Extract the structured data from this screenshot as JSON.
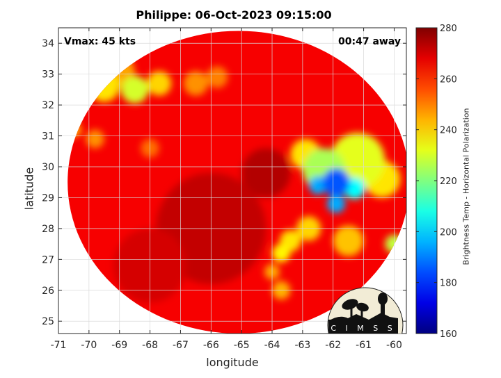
{
  "chart_data": {
    "type": "heatmap",
    "title": "Philippe: 06-Oct-2023 09:15:00",
    "xlabel": "longitude",
    "ylabel": "latitude",
    "xlim": [
      -71,
      -59.6
    ],
    "ylim": [
      24.6,
      34.5
    ],
    "xticks": [
      -71,
      -70,
      -69,
      -68,
      -67,
      -66,
      -65,
      -64,
      -63,
      -62,
      -61,
      -60
    ],
    "yticks": [
      25,
      26,
      27,
      28,
      29,
      30,
      31,
      32,
      33,
      34
    ],
    "grid": true,
    "annotations": {
      "top_left": "Vmax: 45 kts",
      "top_right": "00:47 away"
    },
    "colorbar": {
      "label": "Brightness Temp - Horizontal Polarization",
      "min": 160,
      "max": 280,
      "ticks": [
        160,
        180,
        200,
        220,
        240,
        260,
        280
      ],
      "colormap": "jet"
    },
    "swath": {
      "center": [
        -65.1,
        29.5
      ],
      "radius_lon": 5.6,
      "radius_lat": 4.9,
      "background_value": 266
    },
    "features": [
      {
        "name": "storm core",
        "lon": -61.9,
        "lat": 29.5,
        "value": 185,
        "radius": 0.45
      },
      {
        "name": "storm core",
        "lon": -62.5,
        "lat": 29.4,
        "value": 195,
        "radius": 0.3
      },
      {
        "name": "storm core",
        "lon": -61.9,
        "lat": 28.8,
        "value": 195,
        "radius": 0.3
      },
      {
        "name": "storm core",
        "lon": -61.3,
        "lat": 29.3,
        "value": 205,
        "radius": 0.35
      },
      {
        "name": "convection",
        "lon": -62.3,
        "lat": 29.9,
        "value": 225,
        "radius": 0.7
      },
      {
        "name": "convection",
        "lon": -61.2,
        "lat": 30.2,
        "value": 232,
        "radius": 0.9
      },
      {
        "name": "convection",
        "lon": -60.4,
        "lat": 29.6,
        "value": 238,
        "radius": 0.6
      },
      {
        "name": "convection",
        "lon": -62.9,
        "lat": 30.4,
        "value": 238,
        "radius": 0.5
      },
      {
        "name": "outer band",
        "lon": -60.0,
        "lat": 27.5,
        "value": 228,
        "radius": 0.3
      },
      {
        "name": "outer band",
        "lon": -62.8,
        "lat": 28.0,
        "value": 240,
        "radius": 0.4
      },
      {
        "name": "outer band",
        "lon": -63.4,
        "lat": 27.6,
        "value": 238,
        "radius": 0.35
      },
      {
        "name": "outer band",
        "lon": -63.7,
        "lat": 27.2,
        "value": 236,
        "radius": 0.3
      },
      {
        "name": "outer band",
        "lon": -64.0,
        "lat": 26.6,
        "value": 245,
        "radius": 0.25
      },
      {
        "name": "outer band",
        "lon": -63.7,
        "lat": 26.0,
        "value": 244,
        "radius": 0.3
      },
      {
        "name": "outer band",
        "lon": -61.5,
        "lat": 27.6,
        "value": 242,
        "radius": 0.5
      },
      {
        "name": "northern band",
        "lon": -69.5,
        "lat": 32.6,
        "value": 238,
        "radius": 0.5
      },
      {
        "name": "northern band",
        "lon": -68.5,
        "lat": 32.5,
        "value": 230,
        "radius": 0.45
      },
      {
        "name": "northern band",
        "lon": -67.7,
        "lat": 32.7,
        "value": 240,
        "radius": 0.4
      },
      {
        "name": "northern band",
        "lon": -69.0,
        "lat": 33.1,
        "value": 246,
        "radius": 0.5
      },
      {
        "name": "northern band",
        "lon": -66.5,
        "lat": 32.7,
        "value": 248,
        "radius": 0.4
      },
      {
        "name": "northern band",
        "lon": -65.8,
        "lat": 32.9,
        "value": 250,
        "radius": 0.35
      },
      {
        "name": "northern band",
        "lon": -70.5,
        "lat": 31.2,
        "value": 244,
        "radius": 0.25
      },
      {
        "name": "northern band",
        "lon": -69.8,
        "lat": 30.9,
        "value": 248,
        "radius": 0.3
      },
      {
        "name": "northern band",
        "lon": -68.0,
        "lat": 30.6,
        "value": 252,
        "radius": 0.3
      },
      {
        "name": "clear air",
        "lon": -66.0,
        "lat": 28.0,
        "value": 272,
        "radius": 1.8
      },
      {
        "name": "clear air",
        "lon": -64.2,
        "lat": 29.8,
        "value": 274,
        "radius": 0.8
      },
      {
        "name": "clear air",
        "lon": -68.0,
        "lat": 26.8,
        "value": 270,
        "radius": 1.2
      }
    ]
  },
  "logo": {
    "text": "CIMSS"
  }
}
